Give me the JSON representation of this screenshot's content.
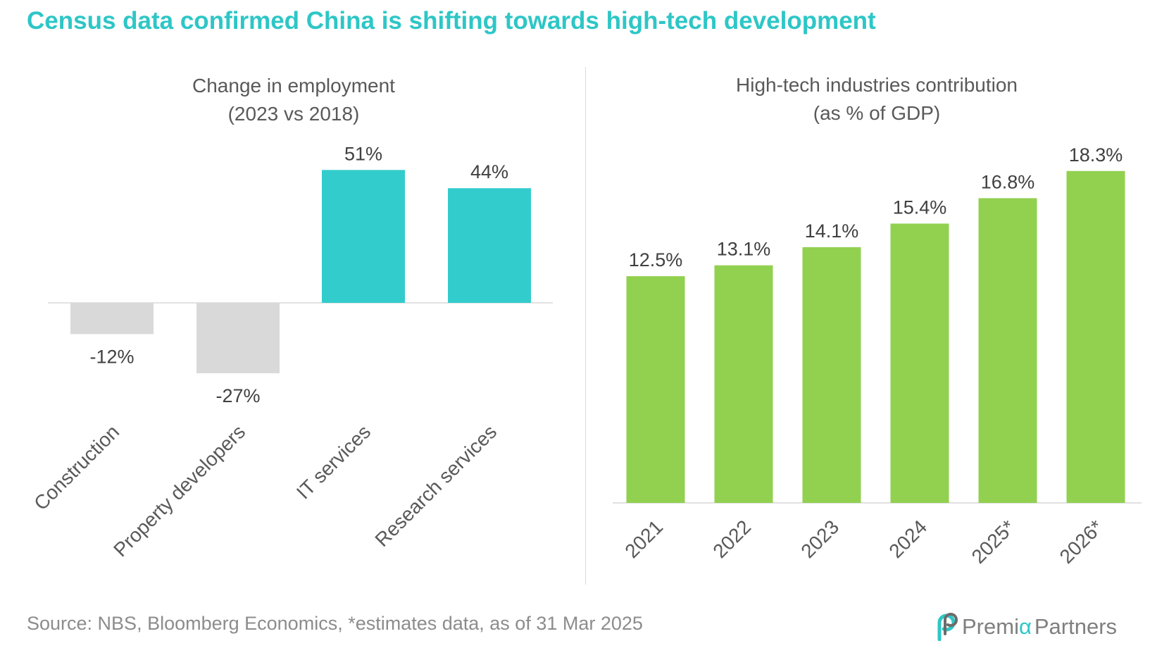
{
  "title": "Census data confirmed China is shifting towards high-tech development",
  "source": "Source: NBS, Bloomberg Economics, *estimates data, as of 31 Mar 2025",
  "logo": {
    "part1": "Premi",
    "alpha": "α",
    "part2": "Partners",
    "icon": "premia-logo-icon"
  },
  "colors": {
    "title": "#2ec6c6",
    "positive": "#33cccc",
    "negative": "#d9d9d9",
    "green": "#92d050"
  },
  "chart_data": [
    {
      "type": "bar",
      "title": [
        "Change in employment",
        "(2023 vs 2018)"
      ],
      "categories": [
        "Construction",
        "Property developers",
        "IT services",
        "Research services"
      ],
      "values": [
        -12,
        -27,
        51,
        44
      ],
      "labels": [
        "-12%",
        "-27%",
        "51%",
        "44%"
      ],
      "unit": "%",
      "ylim": [
        -30,
        55
      ],
      "grid": false
    },
    {
      "type": "bar",
      "title": [
        "High-tech industries contribution",
        "(as % of GDP)"
      ],
      "categories": [
        "2021",
        "2022",
        "2023",
        "2024",
        "2025*",
        "2026*"
      ],
      "values": [
        12.5,
        13.1,
        14.1,
        15.4,
        16.8,
        18.3
      ],
      "labels": [
        "12.5%",
        "13.1%",
        "14.1%",
        "15.4%",
        "16.8%",
        "18.3%"
      ],
      "unit": "%",
      "ylim": [
        0,
        20
      ],
      "grid": false
    }
  ]
}
